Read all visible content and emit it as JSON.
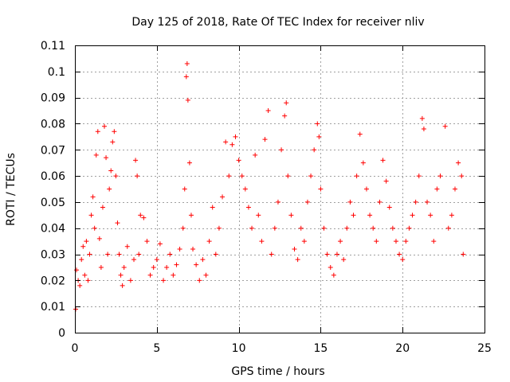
{
  "chart_data": {
    "type": "scatter",
    "title": "Day 125 of 2018, Rate Of TEC Index for receiver nliv",
    "xlabel": "GPS time / hours",
    "ylabel": "ROTI / TECUs",
    "xlim": [
      0,
      25
    ],
    "ylim": [
      0,
      0.11
    ],
    "xticks": [
      0,
      5,
      10,
      15,
      20,
      25
    ],
    "xtick_labels": [
      "0",
      "5",
      "10",
      "15",
      "20",
      "25"
    ],
    "yticks": [
      0,
      0.01,
      0.02,
      0.03,
      0.04,
      0.05,
      0.06,
      0.07,
      0.08,
      0.09,
      0.1,
      0.11
    ],
    "ytick_labels": [
      "0",
      "0.01",
      "0.02",
      "0.03",
      "0.04",
      "0.05",
      "0.06",
      "0.07",
      "0.08",
      "0.09",
      "0.1",
      "0.11"
    ],
    "grid": true,
    "marker": "plus",
    "color": "#ff0000",
    "series": [
      {
        "name": "ROTI",
        "points": [
          [
            0.05,
            0.009
          ],
          [
            0.1,
            0.024
          ],
          [
            0.2,
            0.02
          ],
          [
            0.3,
            0.018
          ],
          [
            0.4,
            0.028
          ],
          [
            0.5,
            0.033
          ],
          [
            0.6,
            0.022
          ],
          [
            0.7,
            0.035
          ],
          [
            0.8,
            0.02
          ],
          [
            0.9,
            0.03
          ],
          [
            1.0,
            0.045
          ],
          [
            1.1,
            0.052
          ],
          [
            1.2,
            0.04
          ],
          [
            1.3,
            0.068
          ],
          [
            1.4,
            0.077
          ],
          [
            1.5,
            0.036
          ],
          [
            1.6,
            0.025
          ],
          [
            1.7,
            0.048
          ],
          [
            1.8,
            0.079
          ],
          [
            1.9,
            0.067
          ],
          [
            2.0,
            0.03
          ],
          [
            2.1,
            0.055
          ],
          [
            2.2,
            0.062
          ],
          [
            2.3,
            0.073
          ],
          [
            2.4,
            0.077
          ],
          [
            2.5,
            0.06
          ],
          [
            2.6,
            0.042
          ],
          [
            2.7,
            0.03
          ],
          [
            2.8,
            0.022
          ],
          [
            2.9,
            0.018
          ],
          [
            3.0,
            0.025
          ],
          [
            3.2,
            0.033
          ],
          [
            3.4,
            0.02
          ],
          [
            3.6,
            0.028
          ],
          [
            3.7,
            0.066
          ],
          [
            3.8,
            0.06
          ],
          [
            3.9,
            0.03
          ],
          [
            4.0,
            0.045
          ],
          [
            4.2,
            0.044
          ],
          [
            4.4,
            0.035
          ],
          [
            4.6,
            0.022
          ],
          [
            4.8,
            0.025
          ],
          [
            5.0,
            0.028
          ],
          [
            5.2,
            0.034
          ],
          [
            5.4,
            0.02
          ],
          [
            5.6,
            0.025
          ],
          [
            5.8,
            0.03
          ],
          [
            6.0,
            0.022
          ],
          [
            6.2,
            0.026
          ],
          [
            6.4,
            0.032
          ],
          [
            6.6,
            0.04
          ],
          [
            6.7,
            0.055
          ],
          [
            6.8,
            0.098
          ],
          [
            6.85,
            0.103
          ],
          [
            6.9,
            0.089
          ],
          [
            7.0,
            0.065
          ],
          [
            7.1,
            0.045
          ],
          [
            7.2,
            0.032
          ],
          [
            7.4,
            0.026
          ],
          [
            7.6,
            0.02
          ],
          [
            7.8,
            0.028
          ],
          [
            8.0,
            0.022
          ],
          [
            8.2,
            0.035
          ],
          [
            8.4,
            0.048
          ],
          [
            8.6,
            0.03
          ],
          [
            8.8,
            0.04
          ],
          [
            9.0,
            0.052
          ],
          [
            9.2,
            0.073
          ],
          [
            9.4,
            0.06
          ],
          [
            9.6,
            0.072
          ],
          [
            9.8,
            0.075
          ],
          [
            10.0,
            0.066
          ],
          [
            10.2,
            0.06
          ],
          [
            10.4,
            0.055
          ],
          [
            10.6,
            0.048
          ],
          [
            10.8,
            0.04
          ],
          [
            11.0,
            0.068
          ],
          [
            11.2,
            0.045
          ],
          [
            11.4,
            0.035
          ],
          [
            11.6,
            0.074
          ],
          [
            11.8,
            0.085
          ],
          [
            12.0,
            0.03
          ],
          [
            12.2,
            0.04
          ],
          [
            12.4,
            0.05
          ],
          [
            12.6,
            0.07
          ],
          [
            12.8,
            0.083
          ],
          [
            12.9,
            0.088
          ],
          [
            13.0,
            0.06
          ],
          [
            13.2,
            0.045
          ],
          [
            13.4,
            0.032
          ],
          [
            13.6,
            0.028
          ],
          [
            13.8,
            0.04
          ],
          [
            14.0,
            0.035
          ],
          [
            14.2,
            0.05
          ],
          [
            14.4,
            0.06
          ],
          [
            14.6,
            0.07
          ],
          [
            14.8,
            0.08
          ],
          [
            14.9,
            0.075
          ],
          [
            15.0,
            0.055
          ],
          [
            15.2,
            0.04
          ],
          [
            15.4,
            0.03
          ],
          [
            15.6,
            0.025
          ],
          [
            15.8,
            0.022
          ],
          [
            16.0,
            0.03
          ],
          [
            16.2,
            0.035
          ],
          [
            16.4,
            0.028
          ],
          [
            16.6,
            0.04
          ],
          [
            16.8,
            0.05
          ],
          [
            17.0,
            0.045
          ],
          [
            17.2,
            0.06
          ],
          [
            17.4,
            0.076
          ],
          [
            17.6,
            0.065
          ],
          [
            17.8,
            0.055
          ],
          [
            18.0,
            0.045
          ],
          [
            18.2,
            0.04
          ],
          [
            18.4,
            0.035
          ],
          [
            18.6,
            0.05
          ],
          [
            18.8,
            0.066
          ],
          [
            19.0,
            0.058
          ],
          [
            19.2,
            0.048
          ],
          [
            19.4,
            0.04
          ],
          [
            19.6,
            0.035
          ],
          [
            19.8,
            0.03
          ],
          [
            20.0,
            0.028
          ],
          [
            20.2,
            0.035
          ],
          [
            20.4,
            0.04
          ],
          [
            20.6,
            0.045
          ],
          [
            20.8,
            0.05
          ],
          [
            21.0,
            0.06
          ],
          [
            21.2,
            0.082
          ],
          [
            21.3,
            0.078
          ],
          [
            21.5,
            0.05
          ],
          [
            21.7,
            0.045
          ],
          [
            21.9,
            0.035
          ],
          [
            22.1,
            0.055
          ],
          [
            22.3,
            0.06
          ],
          [
            22.6,
            0.079
          ],
          [
            22.8,
            0.04
          ],
          [
            23.0,
            0.045
          ],
          [
            23.2,
            0.055
          ],
          [
            23.4,
            0.065
          ],
          [
            23.6,
            0.06
          ],
          [
            23.7,
            0.03
          ]
        ]
      }
    ]
  }
}
